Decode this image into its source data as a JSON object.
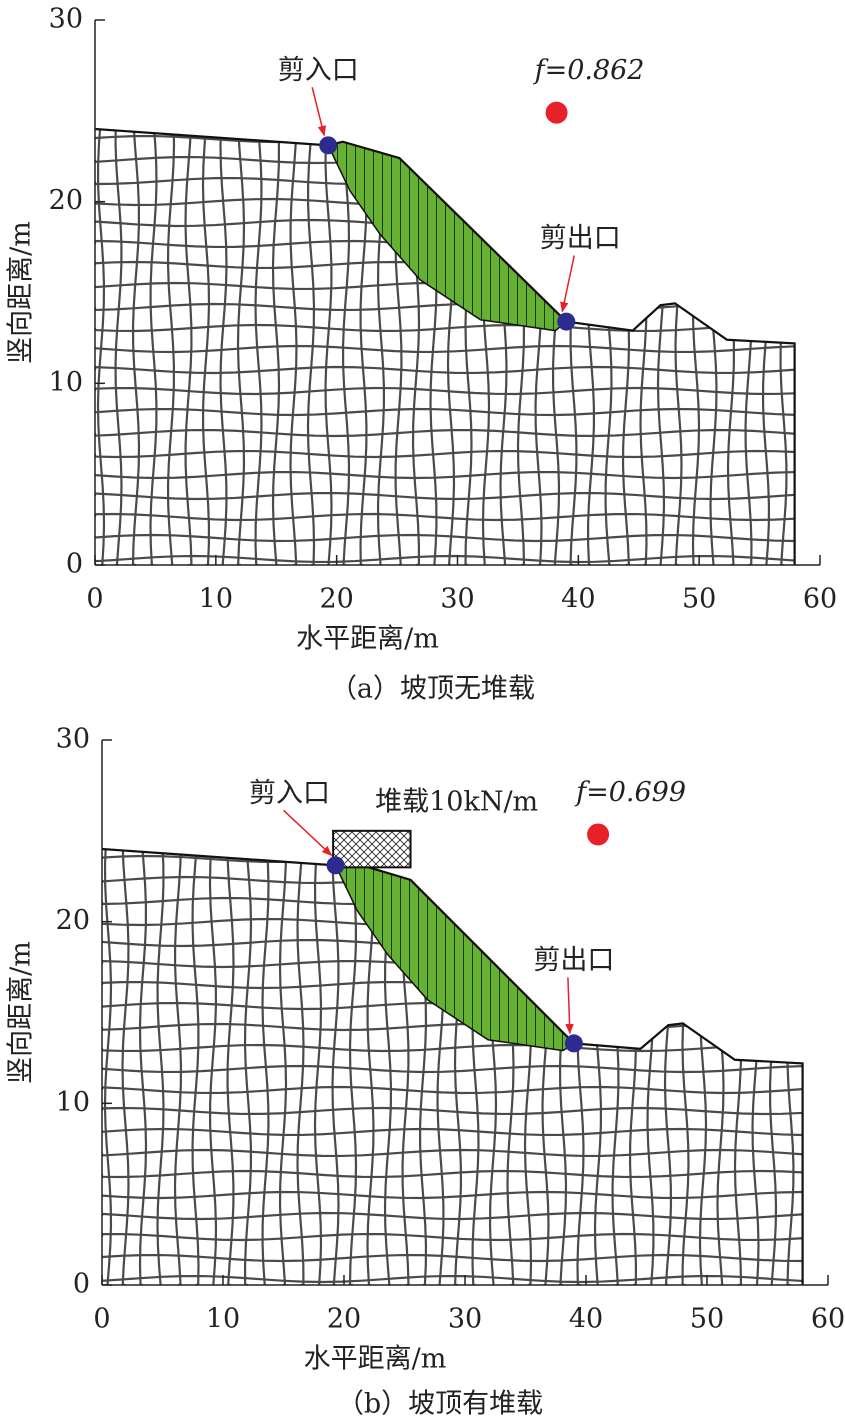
{
  "chart_data": [
    {
      "type": "slope",
      "caption": "（a）坡顶无堆载",
      "xlabel": "水平距离/m",
      "ylabel": "竖向距离/m",
      "xlim": [
        0,
        60
      ],
      "ylim": [
        0,
        30
      ],
      "xticks": [
        0,
        10,
        20,
        30,
        40,
        50,
        60
      ],
      "yticks": [
        0,
        10,
        20,
        30
      ],
      "surface": {
        "x": [
          0,
          19.3,
          20.5,
          25.2,
          39.0,
          44.5,
          46.8,
          48.0,
          52.3,
          57.9,
          57.9
        ],
        "y": [
          24.0,
          23.1,
          23.3,
          22.4,
          13.4,
          12.9,
          14.3,
          14.4,
          12.4,
          12.2,
          0
        ]
      },
      "sliding_mass": {
        "color": "#66b032",
        "x": [
          19.3,
          20.5,
          25.2,
          39.0,
          38.1,
          31.9,
          26.9,
          23.6,
          21.1
        ],
        "y": [
          23.1,
          23.3,
          22.4,
          13.4,
          12.9,
          13.5,
          15.7,
          18.2,
          20.6
        ]
      },
      "point_color": "#2b2b90",
      "entry": {
        "label": "剪入口",
        "x": 19.3,
        "y": 23.1
      },
      "exit": {
        "label": "剪出口",
        "x": 39.0,
        "y": 13.4
      },
      "factor": {
        "label": "f=0.862",
        "x": 38.2,
        "y": 24.9,
        "color": "#e8202a"
      }
    },
    {
      "type": "slope",
      "caption": "（b）坡顶有堆载",
      "xlabel": "水平距离/m",
      "ylabel": "竖向距离/m",
      "xlim": [
        0,
        60
      ],
      "ylim": [
        0,
        30
      ],
      "xticks": [
        0,
        10,
        20,
        30,
        40,
        50,
        60
      ],
      "yticks": [
        0,
        10,
        20,
        30
      ],
      "surface": {
        "x": [
          0,
          19.3,
          20.5,
          25.5,
          39.0,
          44.5,
          46.8,
          48.0,
          52.3,
          57.9,
          57.9
        ],
        "y": [
          24.0,
          23.1,
          23.3,
          22.3,
          13.3,
          13.0,
          14.3,
          14.4,
          12.4,
          12.2,
          0
        ]
      },
      "sliding_mass": {
        "color": "#66b032",
        "x": [
          19.3,
          20.5,
          25.5,
          39.0,
          38.1,
          31.9,
          26.9,
          23.6,
          21.1
        ],
        "y": [
          23.1,
          23.3,
          22.3,
          13.3,
          12.9,
          13.5,
          15.7,
          18.2,
          20.6
        ]
      },
      "point_color": "#2b2b90",
      "entry": {
        "label": "剪入口",
        "x": 19.3,
        "y": 23.1
      },
      "exit": {
        "label": "剪出口",
        "x": 39.0,
        "y": 13.3
      },
      "factor": {
        "label": "f=0.699",
        "x": 41.0,
        "y": 24.8,
        "color": "#e8202a"
      },
      "load": {
        "label": "堆载10kN/m",
        "x": [
          19.1,
          25.5
        ],
        "top": 25.0
      }
    }
  ]
}
